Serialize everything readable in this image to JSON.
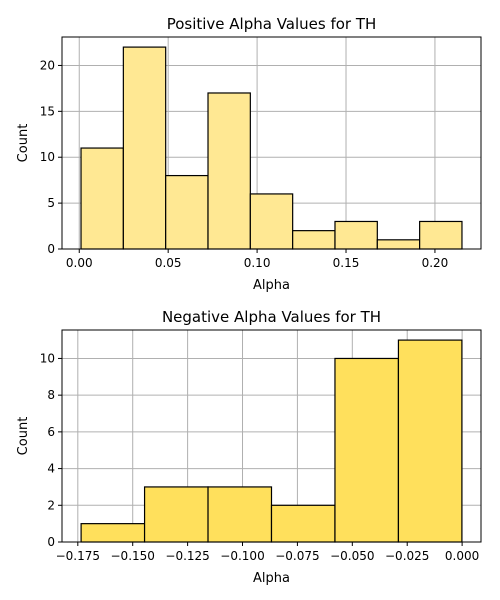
{
  "chart_data": [
    {
      "type": "bar",
      "title": "Positive Alpha Values for TH",
      "xlabel": "Alpha",
      "ylabel": "Count",
      "bin_edges": [
        0.001,
        0.0248,
        0.0486,
        0.0724,
        0.0962,
        0.12,
        0.1438,
        0.1676,
        0.1914,
        0.2152
      ],
      "values": [
        11,
        22,
        8,
        17,
        6,
        2,
        3,
        1,
        3
      ],
      "xlim": [
        -0.0097,
        0.2259
      ],
      "ylim": [
        0,
        23.1
      ],
      "xticks": [
        0.0,
        0.05,
        0.1,
        0.15,
        0.2
      ],
      "xtick_labels": [
        "0.00",
        "0.05",
        "0.10",
        "0.15",
        "0.20"
      ],
      "yticks": [
        0,
        5,
        10,
        15,
        20
      ],
      "ytick_labels": [
        "0",
        "5",
        "10",
        "15",
        "20"
      ],
      "grid": true,
      "bar_color": "#ffe893",
      "edge_color": "#000000"
    },
    {
      "type": "bar",
      "title": "Negative Alpha Values for TH",
      "xlabel": "Alpha",
      "ylabel": "Count",
      "bin_edges": [
        -0.1735,
        -0.1446,
        -0.1157,
        -0.0868,
        -0.0579,
        -0.029,
        -0.0001
      ],
      "values": [
        1,
        3,
        3,
        2,
        10,
        11
      ],
      "xlim": [
        -0.1822,
        0.0086
      ],
      "ylim": [
        0,
        11.55
      ],
      "xticks": [
        -0.175,
        -0.15,
        -0.125,
        -0.1,
        -0.075,
        -0.05,
        -0.025,
        0.0
      ],
      "xtick_labels": [
        "−0.175",
        "−0.150",
        "−0.125",
        "−0.100",
        "−0.075",
        "−0.050",
        "−0.025",
        "0.000"
      ],
      "yticks": [
        0,
        2,
        4,
        6,
        8,
        10
      ],
      "ytick_labels": [
        "0",
        "2",
        "4",
        "6",
        "8",
        "10"
      ],
      "grid": true,
      "bar_color": "#ffe05c",
      "edge_color": "#000000"
    }
  ]
}
